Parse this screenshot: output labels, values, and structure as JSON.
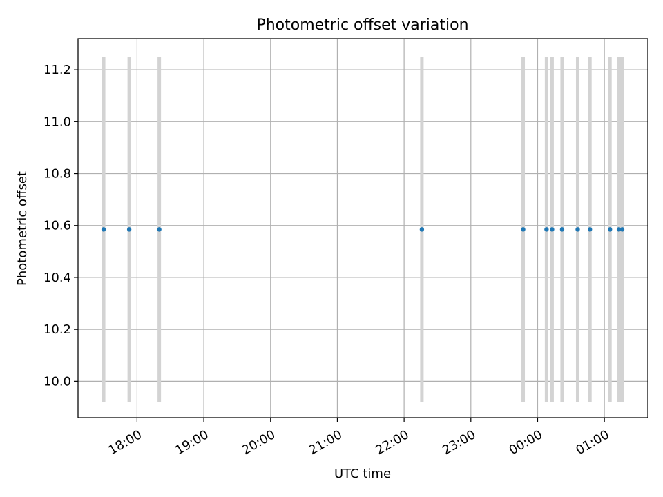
{
  "chart_data": {
    "type": "scatter",
    "title": "Photometric offset variation",
    "xlabel": "UTC time",
    "ylabel": "Photometric offset",
    "x_axis_type": "time",
    "xlim": [
      "17:07",
      "01:39"
    ],
    "ylim": [
      9.86,
      11.32
    ],
    "x_ticks": [
      "18:00",
      "19:00",
      "20:00",
      "21:00",
      "22:00",
      "23:00",
      "00:00",
      "01:00"
    ],
    "y_ticks": [
      "10.0",
      "10.2",
      "10.4",
      "10.6",
      "10.8",
      "11.0",
      "11.2"
    ],
    "grid": true,
    "marker_color": "#1f77b4",
    "errorbar_color": "#d3d3d3",
    "points": [
      {
        "x": "17:30",
        "y": 10.585,
        "yerr_low": 9.92,
        "yerr_high": 11.25
      },
      {
        "x": "17:53",
        "y": 10.585,
        "yerr_low": 9.92,
        "yerr_high": 11.25
      },
      {
        "x": "18:20",
        "y": 10.585,
        "yerr_low": 9.92,
        "yerr_high": 11.25
      },
      {
        "x": "22:16",
        "y": 10.585,
        "yerr_low": 9.92,
        "yerr_high": 11.25
      },
      {
        "x": "23:47",
        "y": 10.585,
        "yerr_low": 9.92,
        "yerr_high": 11.25
      },
      {
        "x": "00:08",
        "y": 10.585,
        "yerr_low": 9.92,
        "yerr_high": 11.25
      },
      {
        "x": "00:13",
        "y": 10.585,
        "yerr_low": 9.92,
        "yerr_high": 11.25
      },
      {
        "x": "00:22",
        "y": 10.585,
        "yerr_low": 9.92,
        "yerr_high": 11.25
      },
      {
        "x": "00:36",
        "y": 10.585,
        "yerr_low": 9.92,
        "yerr_high": 11.25
      },
      {
        "x": "00:47",
        "y": 10.585,
        "yerr_low": 9.92,
        "yerr_high": 11.25
      },
      {
        "x": "01:05",
        "y": 10.585,
        "yerr_low": 9.92,
        "yerr_high": 11.25
      },
      {
        "x": "01:13",
        "y": 10.585,
        "yerr_low": 9.92,
        "yerr_high": 11.25
      },
      {
        "x": "01:16",
        "y": 10.585,
        "yerr_low": 9.92,
        "yerr_high": 11.25
      }
    ]
  }
}
